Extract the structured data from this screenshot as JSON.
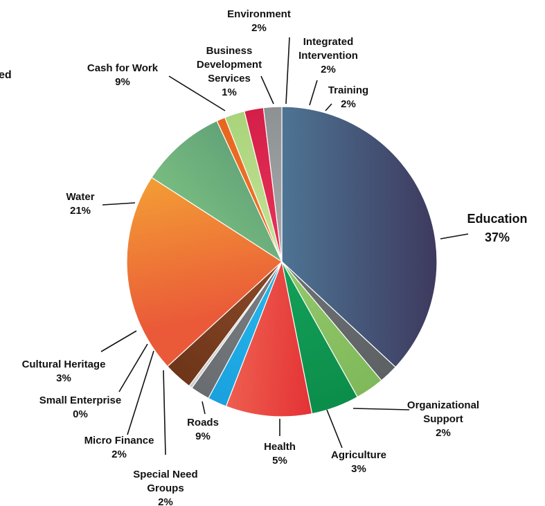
{
  "cut_off_text": "ed",
  "chart_data": {
    "type": "pie",
    "title": "",
    "slices": [
      {
        "label": "Education",
        "value": 37,
        "pct": "37%",
        "colors": [
          "#4e7393",
          "#3d3a5e"
        ]
      },
      {
        "label": "Organizational Support",
        "value": 2,
        "pct": "2%",
        "colors": [
          "#6e7275",
          "#5d6164"
        ]
      },
      {
        "label": "Agriculture",
        "value": 3,
        "pct": "3%",
        "colors": [
          "#94c86c",
          "#7fb95a"
        ]
      },
      {
        "label": "Health",
        "value": 5,
        "pct": "5%",
        "colors": [
          "#13a15a",
          "#0c8d4a"
        ]
      },
      {
        "label": "Roads",
        "value": 9,
        "pct": "9%",
        "colors": [
          "#f2705a",
          "#e0202a"
        ]
      },
      {
        "label": "Special Need Groups",
        "value": 2,
        "pct": "2%",
        "colors": [
          "#27b8ee",
          "#1aa1dd"
        ]
      },
      {
        "label": "Micro Finance",
        "value": 2,
        "pct": "2%",
        "colors": [
          "#7c8083",
          "#696c70"
        ]
      },
      {
        "label": "Small Enterprise",
        "value": 0.35,
        "pct": "0%",
        "colors": [
          "#d8d8d8",
          "#cfcfcf"
        ]
      },
      {
        "label": "Cultural Heritage",
        "value": 3,
        "pct": "3%",
        "colors": [
          "#8a4a2a",
          "#6e3519"
        ]
      },
      {
        "label": "Water",
        "value": 21,
        "pct": "21%",
        "colors": [
          "#f5ad34",
          "#ea5a38"
        ]
      },
      {
        "label": "Cash for Work",
        "value": 9,
        "pct": "9%",
        "colors": [
          "#5a9a74",
          "#80c584"
        ]
      },
      {
        "label": "Business Development Services",
        "value": 0.9,
        "pct": "1%",
        "colors": [
          "#f07a28",
          "#e86520"
        ]
      },
      {
        "label": "Environment",
        "value": 2.1,
        "pct": "2%",
        "colors": [
          "#c8e39a",
          "#a8d47a"
        ]
      },
      {
        "label": "Integrated Intervention",
        "value": 2,
        "pct": "2%",
        "colors": [
          "#e8345a",
          "#d41f48"
        ]
      },
      {
        "label": "Training",
        "value": 1.9,
        "pct": "2%",
        "colors": [
          "#a9abad",
          "#8e9193"
        ]
      }
    ]
  }
}
